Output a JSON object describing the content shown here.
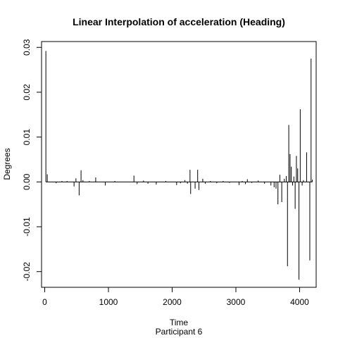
{
  "chart_data": {
    "type": "bar",
    "title": "Linear Interpolation of acceleration (Heading)",
    "xlabel": "Time",
    "sublabel": "Participant  6",
    "ylabel": "Degrees",
    "xlim": [
      -50,
      4260
    ],
    "ylim": [
      -0.0235,
      0.0313
    ],
    "xticks": [
      0,
      1000,
      2000,
      3000,
      4000
    ],
    "xtick_labels": [
      "0",
      "1000",
      "2000",
      "3000",
      "4000"
    ],
    "yticks": [
      -0.02,
      -0.01,
      0.0,
      0.01,
      0.02,
      0.03
    ],
    "ytick_labels": [
      "-0.02",
      "-0.01",
      "0.00",
      "0.01",
      "0.02",
      "0.03"
    ],
    "grid": false,
    "legend": "none",
    "baseline": 0.0,
    "series": [
      {
        "color": "#000000",
        "points": [
          [
            18,
            0.0292
          ],
          [
            40,
            0.0017
          ],
          [
            180,
            -0.0003
          ],
          [
            270,
            0.0002
          ],
          [
            350,
            0.0002
          ],
          [
            460,
            -0.001
          ],
          [
            490,
            0.0008
          ],
          [
            540,
            -0.003
          ],
          [
            570,
            0.0026
          ],
          [
            600,
            0.0004
          ],
          [
            700,
            0.0002
          ],
          [
            800,
            0.001
          ],
          [
            950,
            -0.0008
          ],
          [
            1100,
            0.0002
          ],
          [
            1400,
            0.0014
          ],
          [
            1450,
            -0.0005
          ],
          [
            1550,
            0.0003
          ],
          [
            1620,
            -0.0004
          ],
          [
            1750,
            -0.0006
          ],
          [
            1900,
            0.0002
          ],
          [
            2070,
            -0.0007
          ],
          [
            2130,
            -0.0003
          ],
          [
            2200,
            0.0004
          ],
          [
            2240,
            -0.0004
          ],
          [
            2280,
            0.0027
          ],
          [
            2290,
            -0.0027
          ],
          [
            2360,
            -0.0015
          ],
          [
            2400,
            0.0027
          ],
          [
            2420,
            -0.0018
          ],
          [
            2480,
            0.0007
          ],
          [
            2520,
            -0.0004
          ],
          [
            2600,
            0.0002
          ],
          [
            2700,
            -0.0003
          ],
          [
            2800,
            0.0002
          ],
          [
            2900,
            -0.0002
          ],
          [
            3050,
            -0.0007
          ],
          [
            3100,
            0.0002
          ],
          [
            3150,
            -0.0005
          ],
          [
            3180,
            0.0006
          ],
          [
            3250,
            -0.0002
          ],
          [
            3350,
            0.0003
          ],
          [
            3450,
            -0.0004
          ],
          [
            3550,
            -0.0008
          ],
          [
            3600,
            -0.0012
          ],
          [
            3630,
            -0.0015
          ],
          [
            3660,
            -0.005
          ],
          [
            3690,
            0.0016
          ],
          [
            3720,
            -0.0045
          ],
          [
            3760,
            0.0007
          ],
          [
            3790,
            0.0013
          ],
          [
            3810,
            -0.0188
          ],
          [
            3830,
            0.0127
          ],
          [
            3850,
            0.0062
          ],
          [
            3870,
            0.0034
          ],
          [
            3890,
            -0.0008
          ],
          [
            3910,
            0.0012
          ],
          [
            3930,
            -0.006
          ],
          [
            3950,
            0.0058
          ],
          [
            3970,
            0.003
          ],
          [
            3990,
            -0.0218
          ],
          [
            4010,
            0.0162
          ],
          [
            4040,
            -0.0008
          ],
          [
            4060,
            0.0004
          ],
          [
            4110,
            0.0066
          ],
          [
            4160,
            -0.0175
          ],
          [
            4180,
            0.0275
          ],
          [
            4200,
            0.0005
          ]
        ]
      }
    ]
  }
}
